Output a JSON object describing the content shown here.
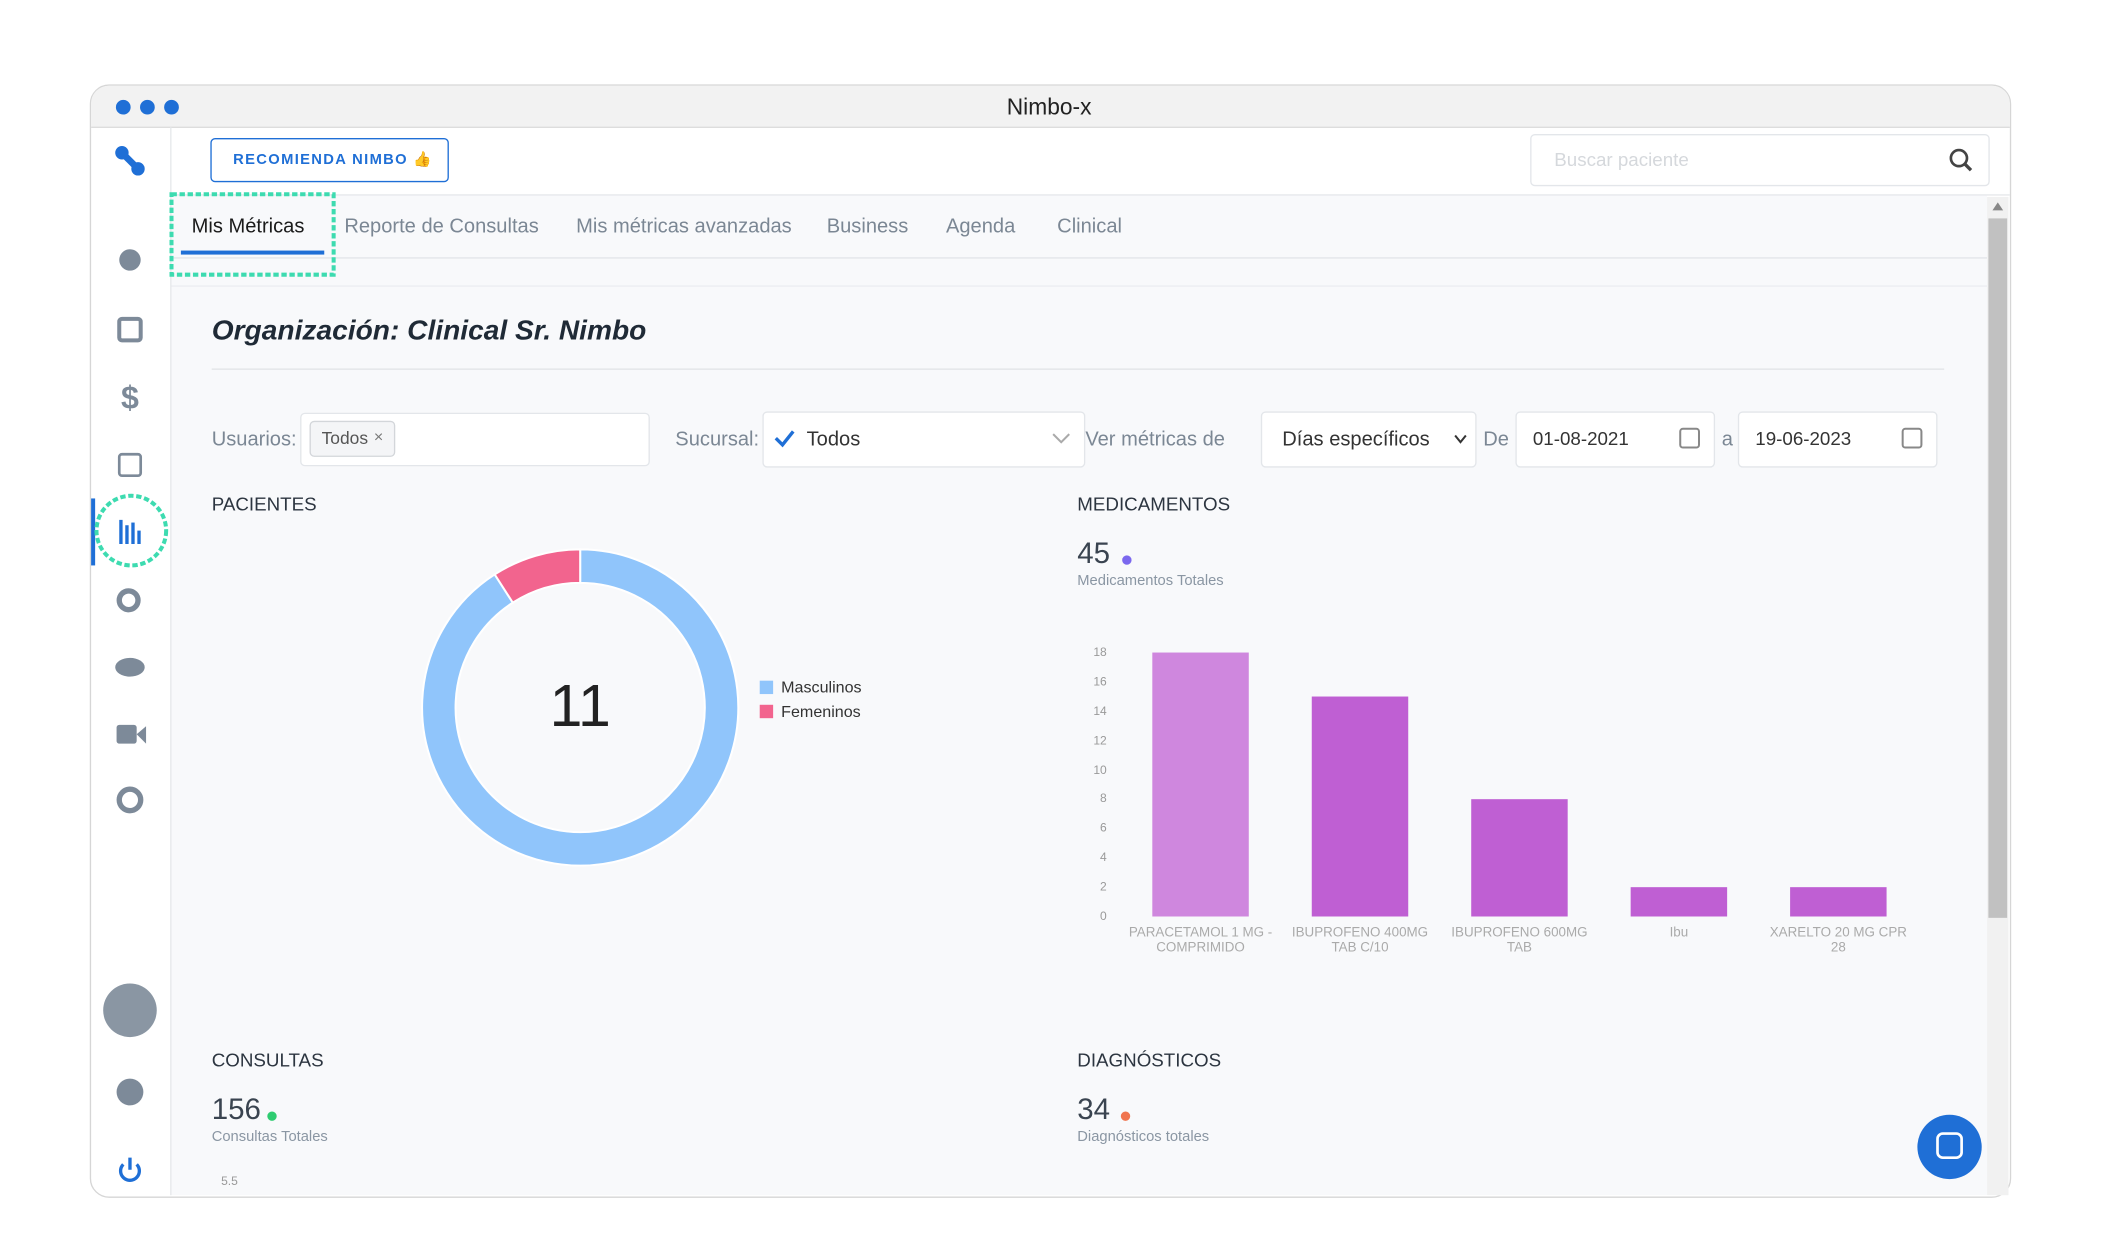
{
  "window": {
    "title": "Nimbo-x"
  },
  "header": {
    "button": "RECOMIENDA NIMBO 👍",
    "search_placeholder": "Buscar paciente"
  },
  "tabs": [
    "Mis Métricas",
    "Reporte de Consultas",
    "Mis métricas avanzadas",
    "Business",
    "Agenda",
    "Clinical"
  ],
  "page": {
    "title": "Organización: Clinical Sr. Nimbo"
  },
  "filters": {
    "users_label": "Usuarios:",
    "users_chip": "Todos",
    "users_chip_remove": "×",
    "branch_label": "Sucursal:",
    "branch_value": "Todos",
    "metrics_label": "Ver métricas de",
    "metrics_value": "Días específicos",
    "from_label": "De",
    "from_date": "01-08-2021",
    "to_label": "a",
    "to_date": "19-06-2023"
  },
  "patients": {
    "type": "pie",
    "title": "PACIENTES",
    "total": 11,
    "series": [
      {
        "name": "Masculinos",
        "color": "#90c5fb",
        "value": 10
      },
      {
        "name": "Femeninos",
        "color": "#f2648e",
        "value": 1
      }
    ]
  },
  "medications": {
    "type": "bar",
    "title": "MEDICAMENTOS",
    "total": 45,
    "total_label": "Medicamentos Totales",
    "categories": [
      "PARACETAMOL 1 MG - COMPRIMIDO",
      "IBUPROFENO 400MG TAB C/10",
      "IBUPROFENO 600MG TAB",
      "Ibu",
      "XARELTO 20 MG CPR 28"
    ],
    "values": [
      18,
      15,
      8,
      2,
      2
    ],
    "colors": [
      "#cf87de",
      "#bf5fd3",
      "#bf5fd3",
      "#bf5fd3",
      "#bf5fd3"
    ],
    "ylim": [
      0,
      18
    ],
    "yticks": [
      0,
      2,
      4,
      6,
      8,
      10,
      12,
      14,
      16,
      18
    ]
  },
  "consultations": {
    "title": "CONSULTAS",
    "total": 156,
    "total_label": "Consultas Totales",
    "yticks": [
      5.5
    ]
  },
  "diagnoses": {
    "title": "DIAGNÓSTICOS",
    "total": 34,
    "total_label": "Diagnósticos totales"
  }
}
